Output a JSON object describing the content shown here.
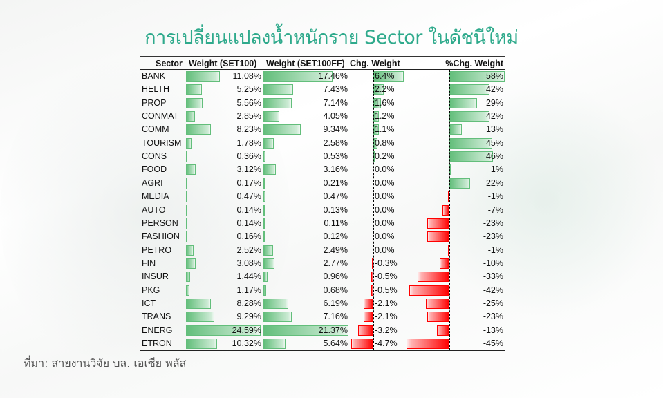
{
  "title": "การเปลี่ยนแปลงน้ำหนักราย Sector ในดัชนีใหม่",
  "source": "ที่มา: สายงานวิจัย บล. เอเซีย พลัส",
  "colors": {
    "title": "#2faa8c",
    "positive_bar": "#63be7b",
    "negative_bar": "#ff0000"
  },
  "chart_data": {
    "type": "table",
    "columns": [
      "Sector",
      "Weight (SET100)",
      "Weight (SET100FF)",
      "Chg. Weight",
      "%Chg. Weight"
    ],
    "rows": [
      [
        "BANK",
        "11.08%",
        "17.46%",
        "6.4%",
        "58%"
      ],
      [
        "HELTH",
        "5.25%",
        "7.43%",
        "2.2%",
        "42%"
      ],
      [
        "PROP",
        "5.56%",
        "7.14%",
        "1.6%",
        "29%"
      ],
      [
        "CONMAT",
        "2.85%",
        "4.05%",
        "1.2%",
        "42%"
      ],
      [
        "COMM",
        "8.23%",
        "9.34%",
        "1.1%",
        "13%"
      ],
      [
        "TOURISM",
        "1.78%",
        "2.58%",
        "0.8%",
        "45%"
      ],
      [
        "CONS",
        "0.36%",
        "0.53%",
        "0.2%",
        "46%"
      ],
      [
        "FOOD",
        "3.12%",
        "3.16%",
        "0.0%",
        "1%"
      ],
      [
        "AGRI",
        "0.17%",
        "0.21%",
        "0.0%",
        "22%"
      ],
      [
        "MEDIA",
        "0.47%",
        "0.47%",
        "0.0%",
        "-1%"
      ],
      [
        "AUTO",
        "0.14%",
        "0.13%",
        "0.0%",
        "-7%"
      ],
      [
        "PERSON",
        "0.14%",
        "0.11%",
        "0.0%",
        "-23%"
      ],
      [
        "FASHION",
        "0.16%",
        "0.12%",
        "0.0%",
        "-23%"
      ],
      [
        "PETRO",
        "2.52%",
        "2.49%",
        "0.0%",
        "-1%"
      ],
      [
        "FIN",
        "3.08%",
        "2.77%",
        "-0.3%",
        "-10%"
      ],
      [
        "INSUR",
        "1.44%",
        "0.96%",
        "-0.5%",
        "-33%"
      ],
      [
        "PKG",
        "1.17%",
        "0.68%",
        "-0.5%",
        "-42%"
      ],
      [
        "ICT",
        "8.28%",
        "6.19%",
        "-2.1%",
        "-25%"
      ],
      [
        "TRANS",
        "9.29%",
        "7.16%",
        "-2.1%",
        "-23%"
      ],
      [
        "ENERG",
        "24.59%",
        "21.37%",
        "-3.2%",
        "-13%"
      ],
      [
        "ETRON",
        "10.32%",
        "5.64%",
        "-4.7%",
        "-45%"
      ]
    ]
  }
}
